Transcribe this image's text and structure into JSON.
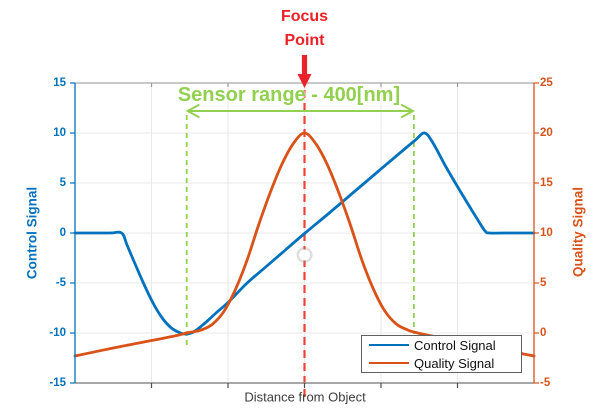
{
  "chart_data": {
    "type": "line",
    "title": "",
    "xlabel": "Distance from Object",
    "x_range": [
      0,
      6
    ],
    "x_gridlines": [
      1,
      2,
      3,
      4,
      5
    ],
    "grid": true,
    "left_axis": {
      "label": "Control Signal",
      "color": "#0072bd",
      "range": [
        -15,
        15
      ],
      "ticks": [
        15,
        10,
        5,
        0,
        -5,
        -10,
        -15
      ]
    },
    "right_axis": {
      "label": "Quality Signal",
      "color": "#d95319",
      "range": [
        -5,
        25
      ],
      "ticks": [
        25,
        20,
        15,
        10,
        5,
        0,
        -5
      ]
    },
    "series": [
      {
        "name": "Control Signal",
        "axis": "left",
        "color": "#0072bd",
        "points": [
          [
            0,
            0
          ],
          [
            0.45,
            0
          ],
          [
            0.61,
            0
          ],
          [
            0.68,
            -1.2
          ],
          [
            0.78,
            -3.0
          ],
          [
            0.9,
            -5.1
          ],
          [
            1.02,
            -7.0
          ],
          [
            1.14,
            -8.5
          ],
          [
            1.26,
            -9.5
          ],
          [
            1.38,
            -10.0
          ],
          [
            1.46,
            -10.1
          ],
          [
            1.56,
            -9.85
          ],
          [
            1.7,
            -9.0
          ],
          [
            1.85,
            -7.95
          ],
          [
            2.0,
            -6.95
          ],
          [
            2.25,
            -5.0
          ],
          [
            2.5,
            -3.35
          ],
          [
            2.75,
            -1.7
          ],
          [
            3.0,
            -0.05
          ],
          [
            3.3,
            1.85
          ],
          [
            3.6,
            3.8
          ],
          [
            3.9,
            5.75
          ],
          [
            4.2,
            7.7
          ],
          [
            4.45,
            9.3
          ],
          [
            4.57,
            10.0
          ],
          [
            4.68,
            9.0
          ],
          [
            4.85,
            6.6
          ],
          [
            5.05,
            4.0
          ],
          [
            5.25,
            1.5
          ],
          [
            5.36,
            0.2
          ],
          [
            5.42,
            0
          ],
          [
            5.6,
            0
          ],
          [
            6,
            0
          ]
        ]
      },
      {
        "name": "Quality Signal",
        "axis": "right",
        "color": "#d95319",
        "points": [
          [
            0,
            -2.3
          ],
          [
            0.5,
            -1.5
          ],
          [
            1.0,
            -0.75
          ],
          [
            1.3,
            -0.3
          ],
          [
            1.46,
            0
          ],
          [
            1.65,
            0.3
          ],
          [
            1.8,
            0.9
          ],
          [
            1.95,
            2.2
          ],
          [
            2.1,
            4.4
          ],
          [
            2.25,
            7.3
          ],
          [
            2.4,
            10.8
          ],
          [
            2.55,
            14.0
          ],
          [
            2.7,
            16.8
          ],
          [
            2.85,
            18.9
          ],
          [
            3.0,
            20.0
          ],
          [
            3.15,
            18.9
          ],
          [
            3.3,
            16.8
          ],
          [
            3.45,
            14.0
          ],
          [
            3.6,
            10.8
          ],
          [
            3.75,
            7.3
          ],
          [
            3.9,
            4.4
          ],
          [
            4.05,
            2.2
          ],
          [
            4.2,
            0.9
          ],
          [
            4.35,
            0.3
          ],
          [
            4.43,
            0.1
          ],
          [
            4.6,
            -0.2
          ],
          [
            4.9,
            -0.65
          ],
          [
            5.2,
            -1.1
          ],
          [
            5.6,
            -1.7
          ],
          [
            6.0,
            -2.3
          ]
        ]
      }
    ],
    "legend": {
      "position": "bottom-right",
      "entries": [
        {
          "label": "Control Signal",
          "color": "#0072bd"
        },
        {
          "label": "Quality Signal",
          "color": "#d95319"
        }
      ]
    },
    "annotations": {
      "focus_point": {
        "line1": "Focus",
        "line2": "Point",
        "x": 3.0,
        "text_color": "#ea2127",
        "arrow_color": "#e8232a",
        "line_color": "#ef4237",
        "line_style": "dashed"
      },
      "sensor_range": {
        "label": "Sensor range - 400[nm]",
        "x_start": 1.46,
        "x_end": 4.43,
        "color": "#92d050",
        "line_style": "dashed"
      },
      "pointer_dot": {
        "x": 3.0,
        "y_left": -2.2
      }
    }
  }
}
